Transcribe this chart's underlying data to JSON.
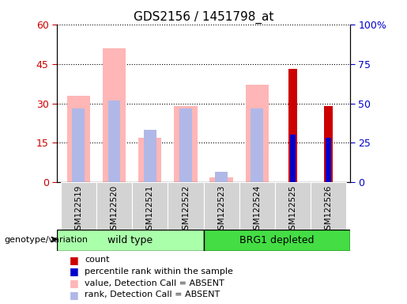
{
  "title": "GDS2156 / 1451798_at",
  "samples": [
    "GSM122519",
    "GSM122520",
    "GSM122521",
    "GSM122522",
    "GSM122523",
    "GSM122524",
    "GSM122525",
    "GSM122526"
  ],
  "ylim_left": [
    0,
    60
  ],
  "ylim_right": [
    0,
    100
  ],
  "yticks_left": [
    0,
    15,
    30,
    45,
    60
  ],
  "ytick_labels_left": [
    "0",
    "15",
    "30",
    "45",
    "60"
  ],
  "yticks_right": [
    0,
    25,
    50,
    75,
    100
  ],
  "ytick_labels_right": [
    "0",
    "25",
    "50",
    "75",
    "100%"
  ],
  "value_absent": [
    33,
    51,
    17,
    29,
    2,
    37,
    0,
    0
  ],
  "rank_absent": [
    28,
    31,
    20,
    28,
    4,
    28,
    0,
    0
  ],
  "count": [
    0,
    0,
    0,
    0,
    0,
    0,
    43,
    29
  ],
  "percentile_rank": [
    0,
    0,
    0,
    0,
    0,
    0,
    30,
    28
  ],
  "color_value_absent": "#ffb6b6",
  "color_rank_absent": "#b0b8e8",
  "color_count": "#cc0000",
  "color_percentile": "#0000cc",
  "legend_items": [
    {
      "label": "count",
      "color": "#cc0000"
    },
    {
      "label": "percentile rank within the sample",
      "color": "#0000cc"
    },
    {
      "label": "value, Detection Call = ABSENT",
      "color": "#ffb6b6"
    },
    {
      "label": "rank, Detection Call = ABSENT",
      "color": "#b0b8e8"
    }
  ],
  "left_axis_color": "#cc0000",
  "right_axis_color": "#0000cc",
  "wild_type_color": "#aaffaa",
  "brg1_color": "#44dd44"
}
